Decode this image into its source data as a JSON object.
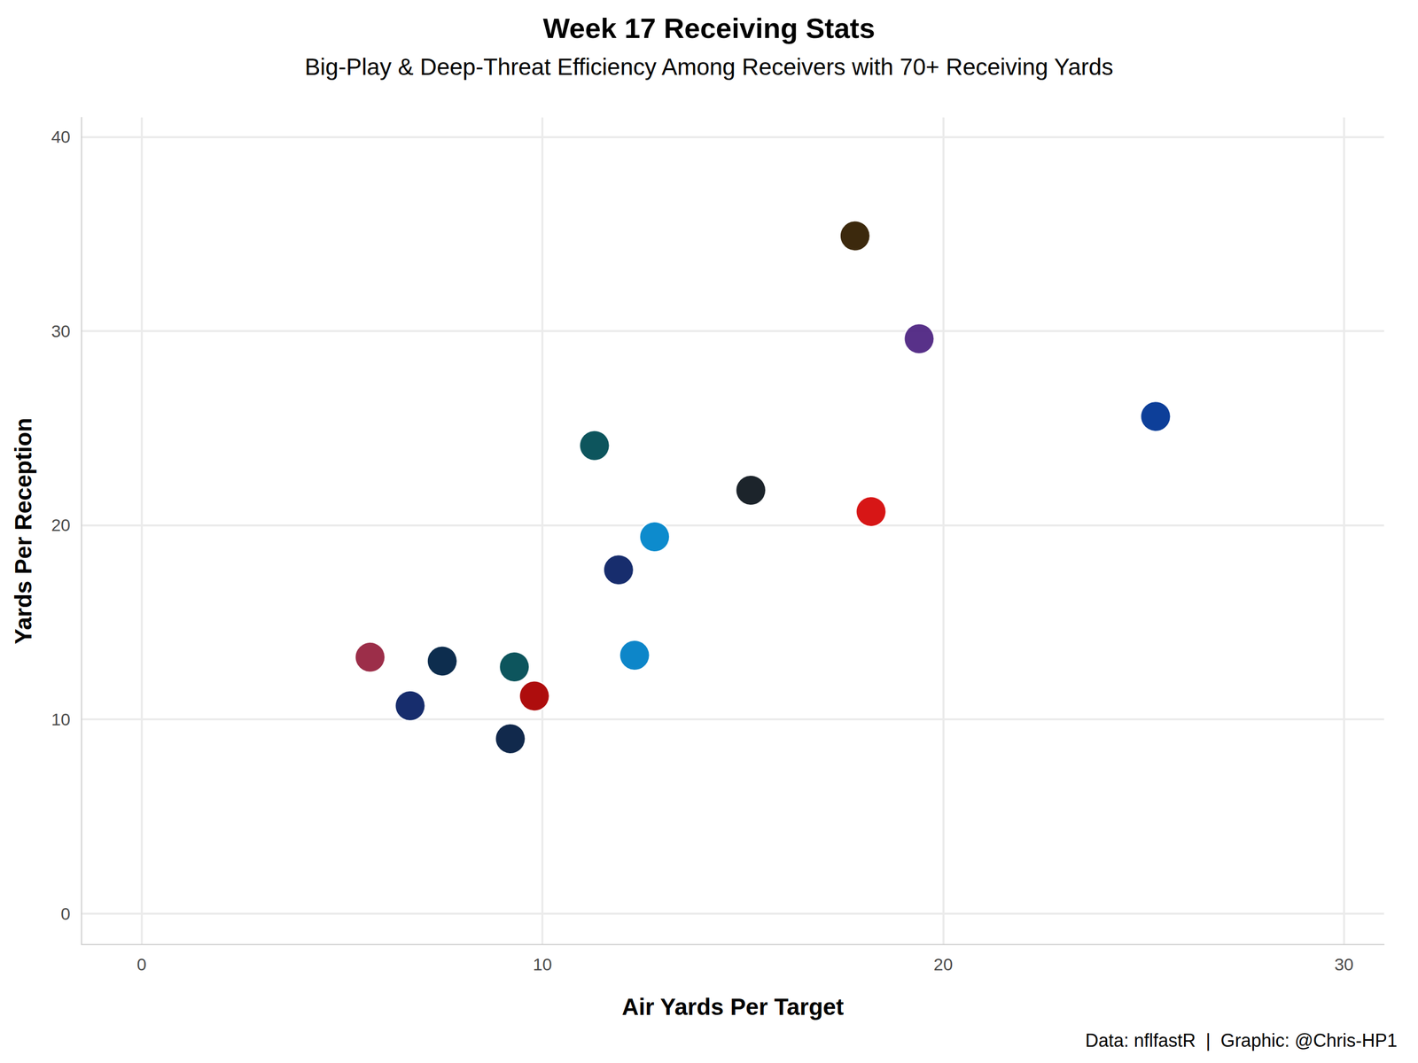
{
  "chart_data": {
    "type": "scatter",
    "title": "Week 17 Receiving Stats",
    "subtitle": "Big-Play & Deep-Threat Efficiency Among Receivers with 70+ Receiving Yards",
    "x_label": "Air Yards Per Target",
    "y_label": "Yards Per Reception",
    "caption": "Data: nflfastR  |  Graphic: @Chris-HP1",
    "x": [
      17.8,
      19.4,
      25.3,
      11.3,
      15.2,
      18.2,
      12.8,
      11.9,
      5.7,
      7.5,
      9.3,
      12.3,
      6.7,
      9.8,
      9.2
    ],
    "values": [
      34.9,
      29.6,
      25.6,
      24.1,
      21.8,
      20.7,
      19.4,
      17.7,
      13.2,
      13.0,
      12.7,
      13.3,
      10.7,
      11.2,
      9.0
    ],
    "colors": [
      "#311d00",
      "#4f2683",
      "#003594",
      "#004c54",
      "#101820",
      "#d50a0a",
      "#0085ca",
      "#0b2265",
      "#97233f",
      "#002244",
      "#004c54",
      "#0080c6",
      "#0b2265",
      "#aa0000",
      "#041e42"
    ],
    "marker": "circle",
    "xlim": [
      -1.5,
      31
    ],
    "ylim": [
      -1.6,
      41
    ],
    "xticks": [
      0,
      10,
      20,
      30
    ],
    "yticks": [
      0,
      10,
      20,
      30,
      40
    ],
    "grid": true
  }
}
